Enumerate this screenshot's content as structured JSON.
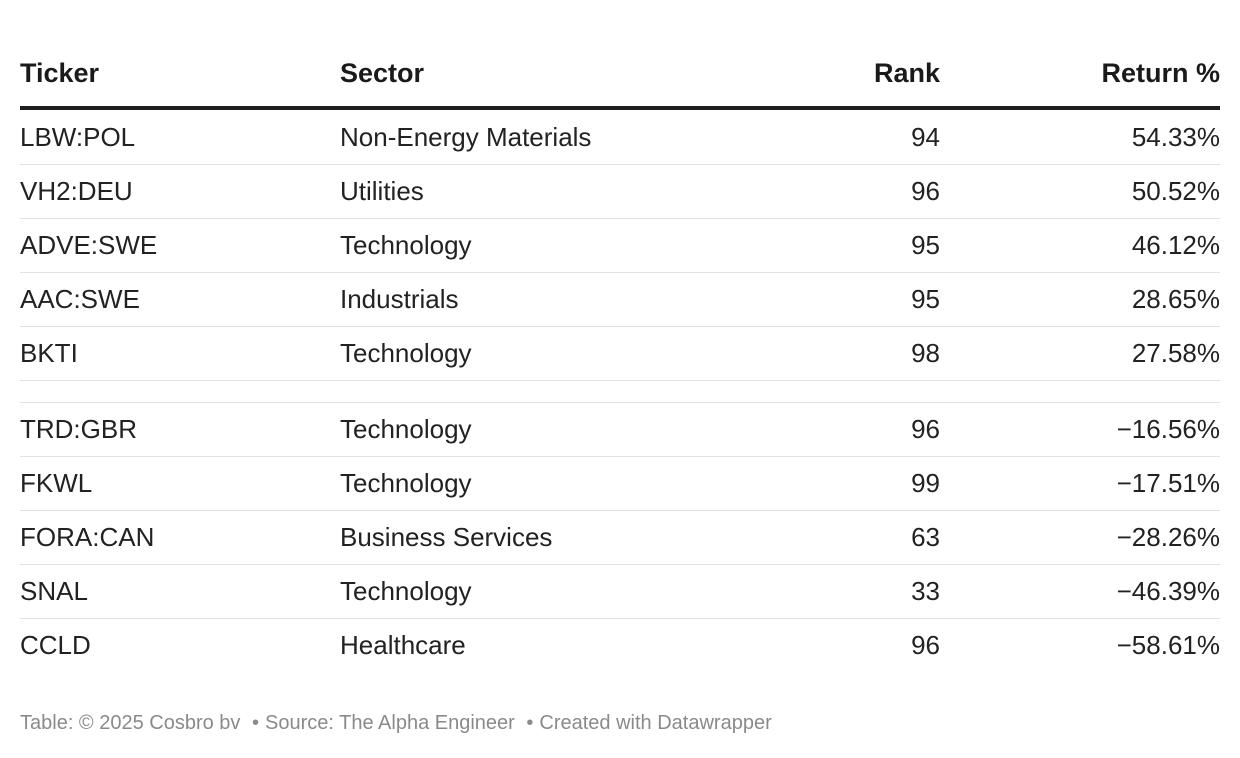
{
  "chart_data": {
    "type": "table",
    "columns": [
      "Ticker",
      "Sector",
      "Rank",
      "Return %"
    ],
    "rows": [
      {
        "ticker": "LBW:POL",
        "sector": "Non-Energy Materials",
        "rank": "94",
        "return": "54.33%"
      },
      {
        "ticker": "VH2:DEU",
        "sector": "Utilities",
        "rank": "96",
        "return": "50.52%"
      },
      {
        "ticker": "ADVE:SWE",
        "sector": "Technology",
        "rank": "95",
        "return": "46.12%"
      },
      {
        "ticker": "AAC:SWE",
        "sector": "Industrials",
        "rank": "95",
        "return": "28.65%"
      },
      {
        "ticker": "BKTI",
        "sector": "Technology",
        "rank": "98",
        "return": "27.58%"
      },
      {
        "spacer": true
      },
      {
        "ticker": "TRD:GBR",
        "sector": "Technology",
        "rank": "96",
        "return": "−16.56%"
      },
      {
        "ticker": "FKWL",
        "sector": "Technology",
        "rank": "99",
        "return": "−17.51%"
      },
      {
        "ticker": "FORA:CAN",
        "sector": "Business Services",
        "rank": "63",
        "return": "−28.26%"
      },
      {
        "ticker": "SNAL",
        "sector": "Technology",
        "rank": "33",
        "return": "−46.39%"
      },
      {
        "ticker": "CCLD",
        "sector": "Healthcare",
        "rank": "96",
        "return": "−58.61%"
      }
    ]
  },
  "footer": {
    "credit": "Table: © 2025 Cosbro bv",
    "source": "Source: The Alpha Engineer",
    "created": "Created with Datawrapper",
    "separator": "•"
  },
  "colors": {
    "text": "#1d1d1d",
    "rule": "#e2e2e2",
    "footer": "#8a8a8a"
  }
}
